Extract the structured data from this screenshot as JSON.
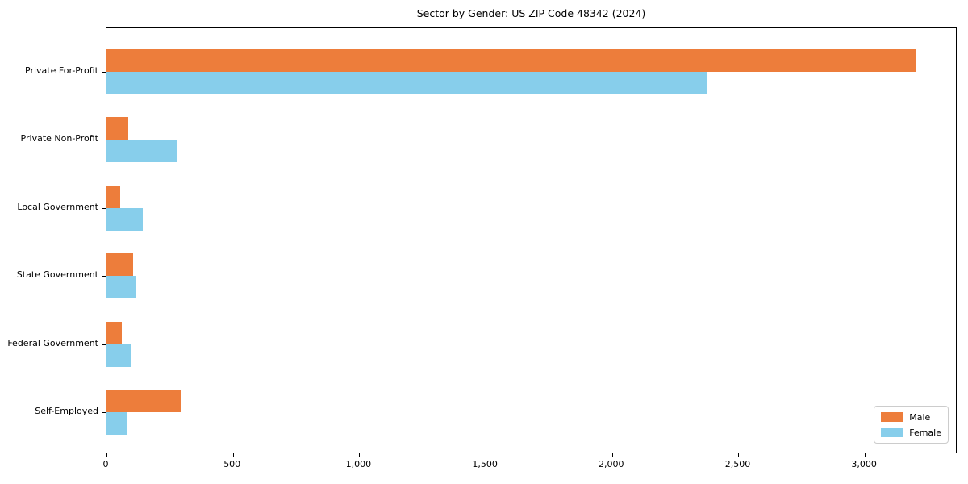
{
  "chart_data": {
    "type": "bar",
    "orientation": "horizontal",
    "title": "Sector by Gender: US ZIP Code 48342 (2024)",
    "categories": [
      "Private For-Profit",
      "Private Non-Profit",
      "Local Government",
      "State Government",
      "Federal Government",
      "Self-Employed"
    ],
    "series": [
      {
        "name": "Male",
        "color": "#ed7d3b",
        "values": [
          3200,
          85,
          55,
          105,
          60,
          295
        ]
      },
      {
        "name": "Female",
        "color": "#87ceeb",
        "values": [
          2375,
          280,
          145,
          115,
          95,
          80
        ]
      }
    ],
    "xlabel": "",
    "ylabel": "",
    "xlim": [
      0,
      3360
    ],
    "xticks": [
      0,
      500,
      1000,
      1500,
      2000,
      2500,
      3000
    ],
    "xtick_labels": [
      "0",
      "500",
      "1,000",
      "1,500",
      "2,000",
      "2,500",
      "3,000"
    ],
    "grid": false,
    "legend_position": "lower-right",
    "plot_background": "#ffffff",
    "axis_color": "#000000"
  }
}
